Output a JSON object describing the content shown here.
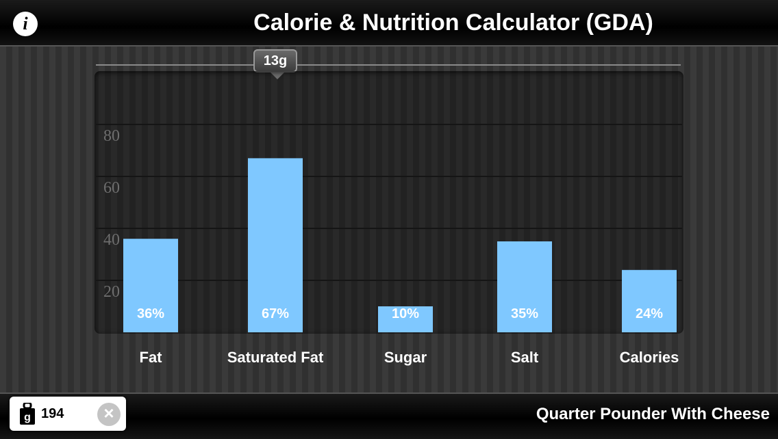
{
  "header": {
    "title": "Calorie & Nutrition Calculator (GDA)",
    "info_icon": "info-icon"
  },
  "slider": {
    "label": "13g"
  },
  "chart_data": {
    "type": "bar",
    "categories": [
      "Fat",
      "Saturated Fat",
      "Sugar",
      "Salt",
      "Calories"
    ],
    "values": [
      36,
      67,
      10,
      35,
      24
    ],
    "data_labels": [
      "36%",
      "67%",
      "10%",
      "35%",
      "24%"
    ],
    "y_ticks": [
      "20",
      "40",
      "60",
      "80"
    ],
    "ylim": [
      0,
      100
    ],
    "bar_color": "#7fc8ff"
  },
  "footer": {
    "weight_value": "194",
    "weight_icon": "g",
    "clear_icon": "close-icon",
    "food_name": "Quarter Pounder With Cheese"
  }
}
